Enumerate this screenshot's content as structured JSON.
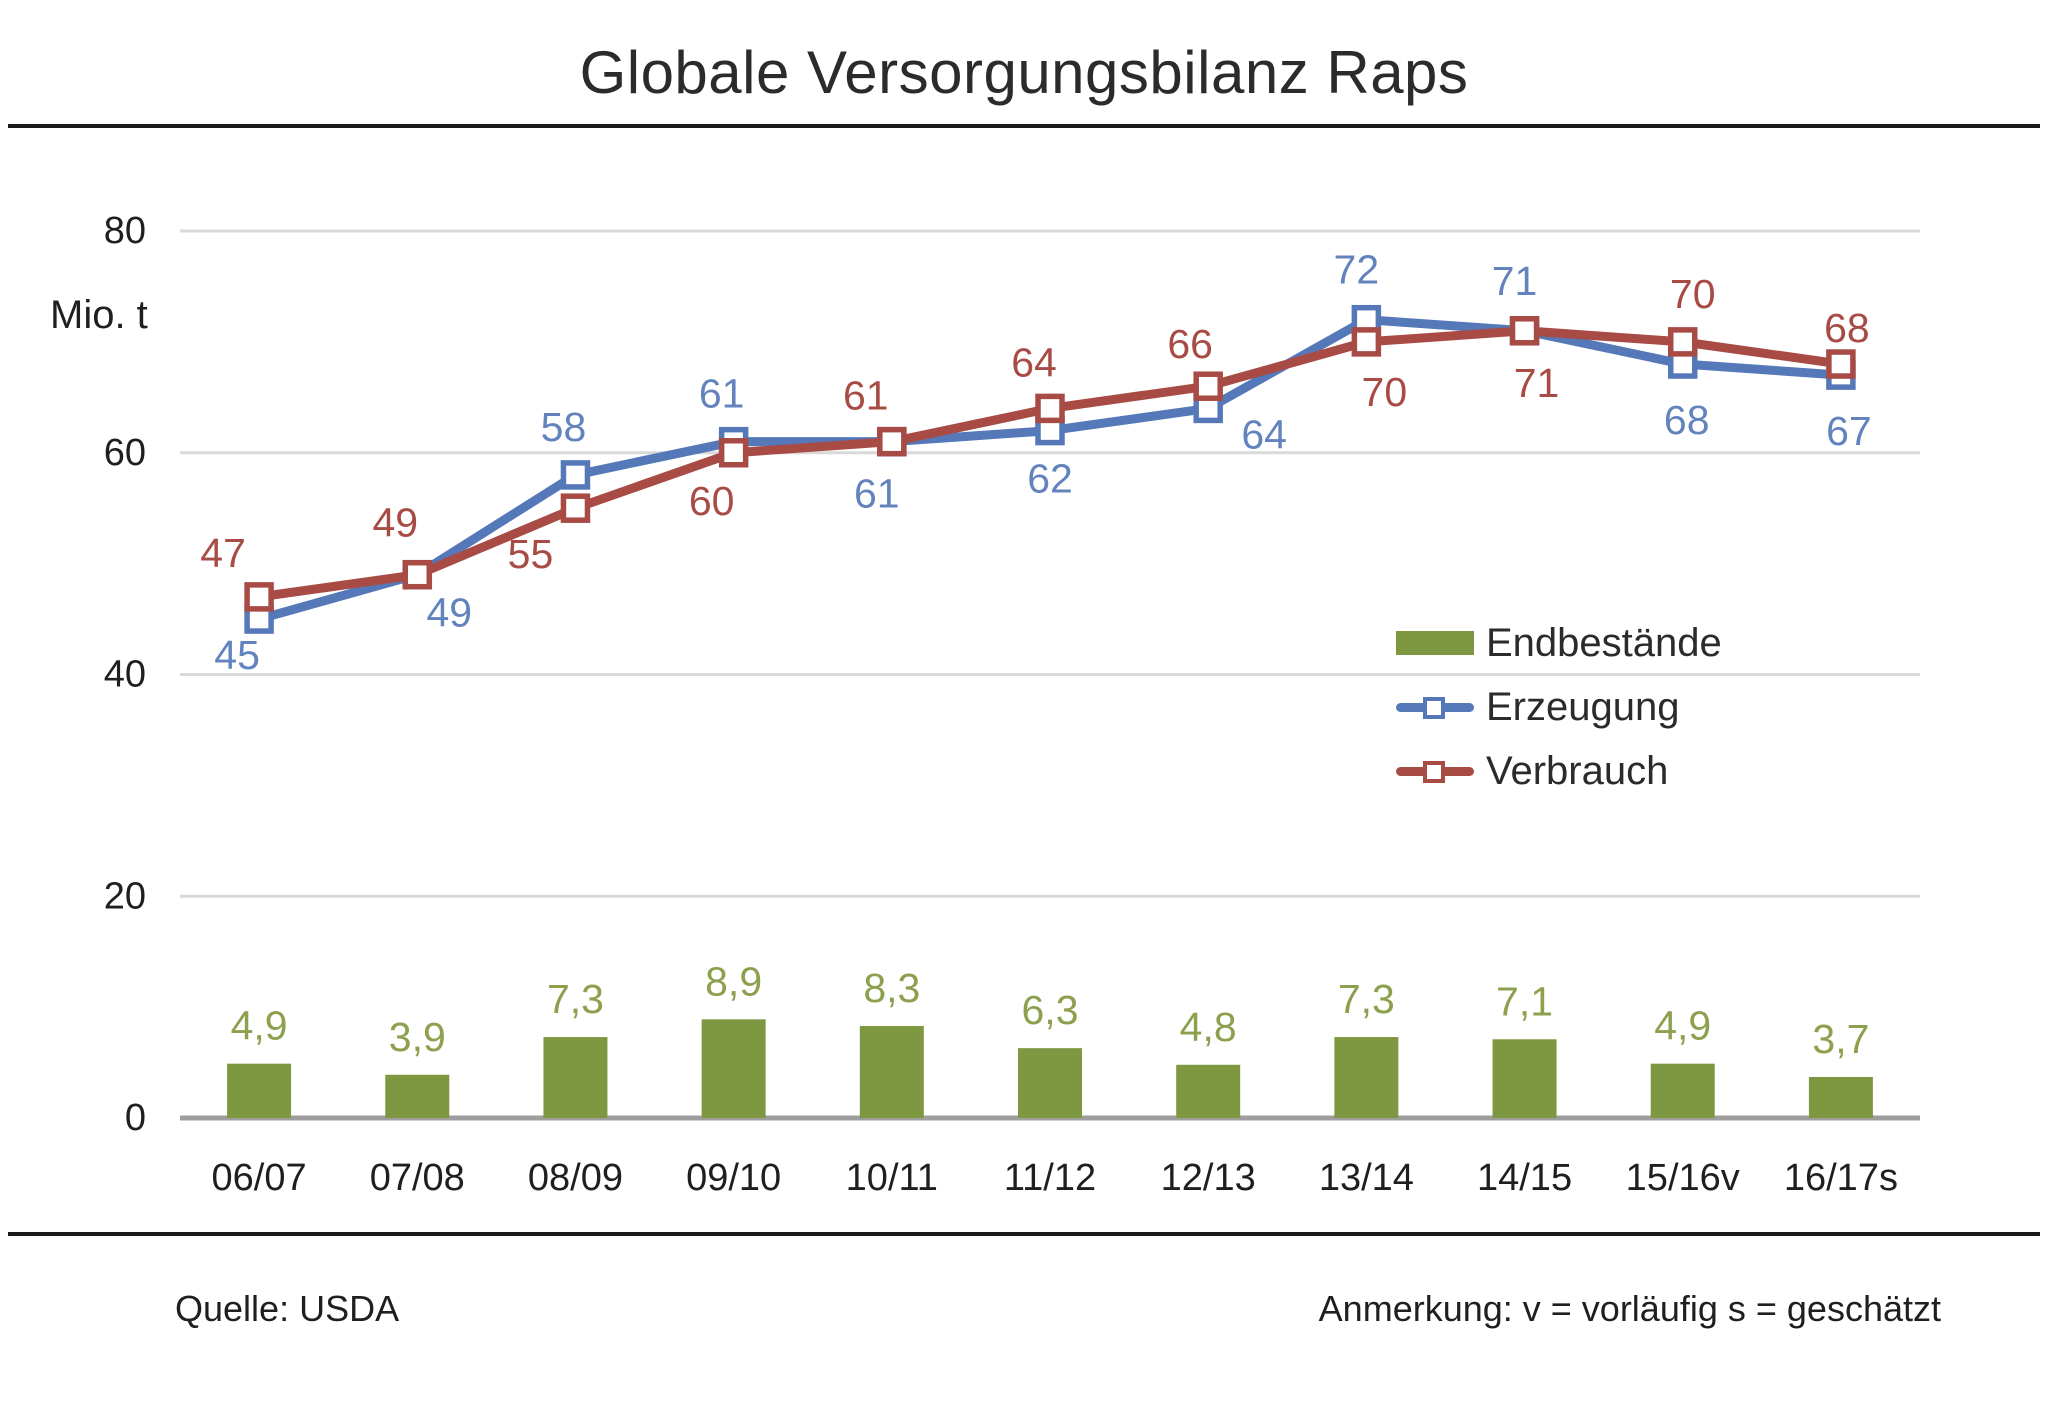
{
  "page": {
    "title": "Globale Versorgungsbilanz Raps",
    "footer_left": "Quelle: USDA",
    "footer_right": "Anmerkung: v = vorläufig s = geschätzt"
  },
  "chart_data": {
    "type": "bar+line combo",
    "title": "Globale Versorgungsbilanz Raps",
    "xlabel": "",
    "ylabel": "Mio. t",
    "ylim": [
      0,
      80
    ],
    "yticks": [
      0,
      20,
      40,
      60,
      80
    ],
    "grid": "horizontal",
    "legend_position": "center-right",
    "decimal_separator": ",",
    "categories": [
      "06/07",
      "07/08",
      "08/09",
      "09/10",
      "10/11",
      "11/12",
      "12/13",
      "13/14",
      "14/15",
      "15/16v",
      "16/17s"
    ],
    "colors": {
      "gridline": "#D9D9D9",
      "axis": "#9E9E9E",
      "text": "#1F1F1F"
    },
    "series": [
      {
        "name": "Endbestände",
        "type": "bar",
        "color": "#7E9842",
        "label_color": "#8CA04E",
        "values": [
          4.9,
          3.9,
          7.3,
          8.9,
          8.3,
          6.3,
          4.8,
          7.3,
          7.1,
          4.9,
          3.7
        ]
      },
      {
        "name": "Erzeugung",
        "type": "line",
        "color": "#5578B9",
        "label_color": "#6383BE",
        "values": [
          45,
          49,
          58,
          61,
          61,
          62,
          64,
          72,
          71,
          68,
          67
        ],
        "label_offsets": [
          [
            -22,
            36
          ],
          [
            32,
            38
          ],
          [
            -12,
            -48
          ],
          [
            -12,
            -48
          ],
          [
            -15,
            52
          ],
          [
            0,
            48
          ],
          [
            56,
            26
          ],
          [
            -10,
            -50
          ],
          [
            -10,
            -50
          ],
          [
            4,
            56
          ],
          [
            8,
            56
          ]
        ]
      },
      {
        "name": "Verbrauch",
        "type": "line",
        "color": "#A84B45",
        "label_color": "#A84B45",
        "values": [
          47,
          49,
          55,
          60,
          61,
          64,
          66,
          70,
          71,
          70,
          68
        ],
        "label_offsets": [
          [
            -36,
            -44
          ],
          [
            -22,
            -52
          ],
          [
            -45,
            46
          ],
          [
            -22,
            48
          ],
          [
            -26,
            -46
          ],
          [
            -16,
            -46
          ],
          [
            -18,
            -42
          ],
          [
            18,
            50
          ],
          [
            12,
            52
          ],
          [
            10,
            -48
          ],
          [
            6,
            -36
          ]
        ]
      }
    ]
  }
}
